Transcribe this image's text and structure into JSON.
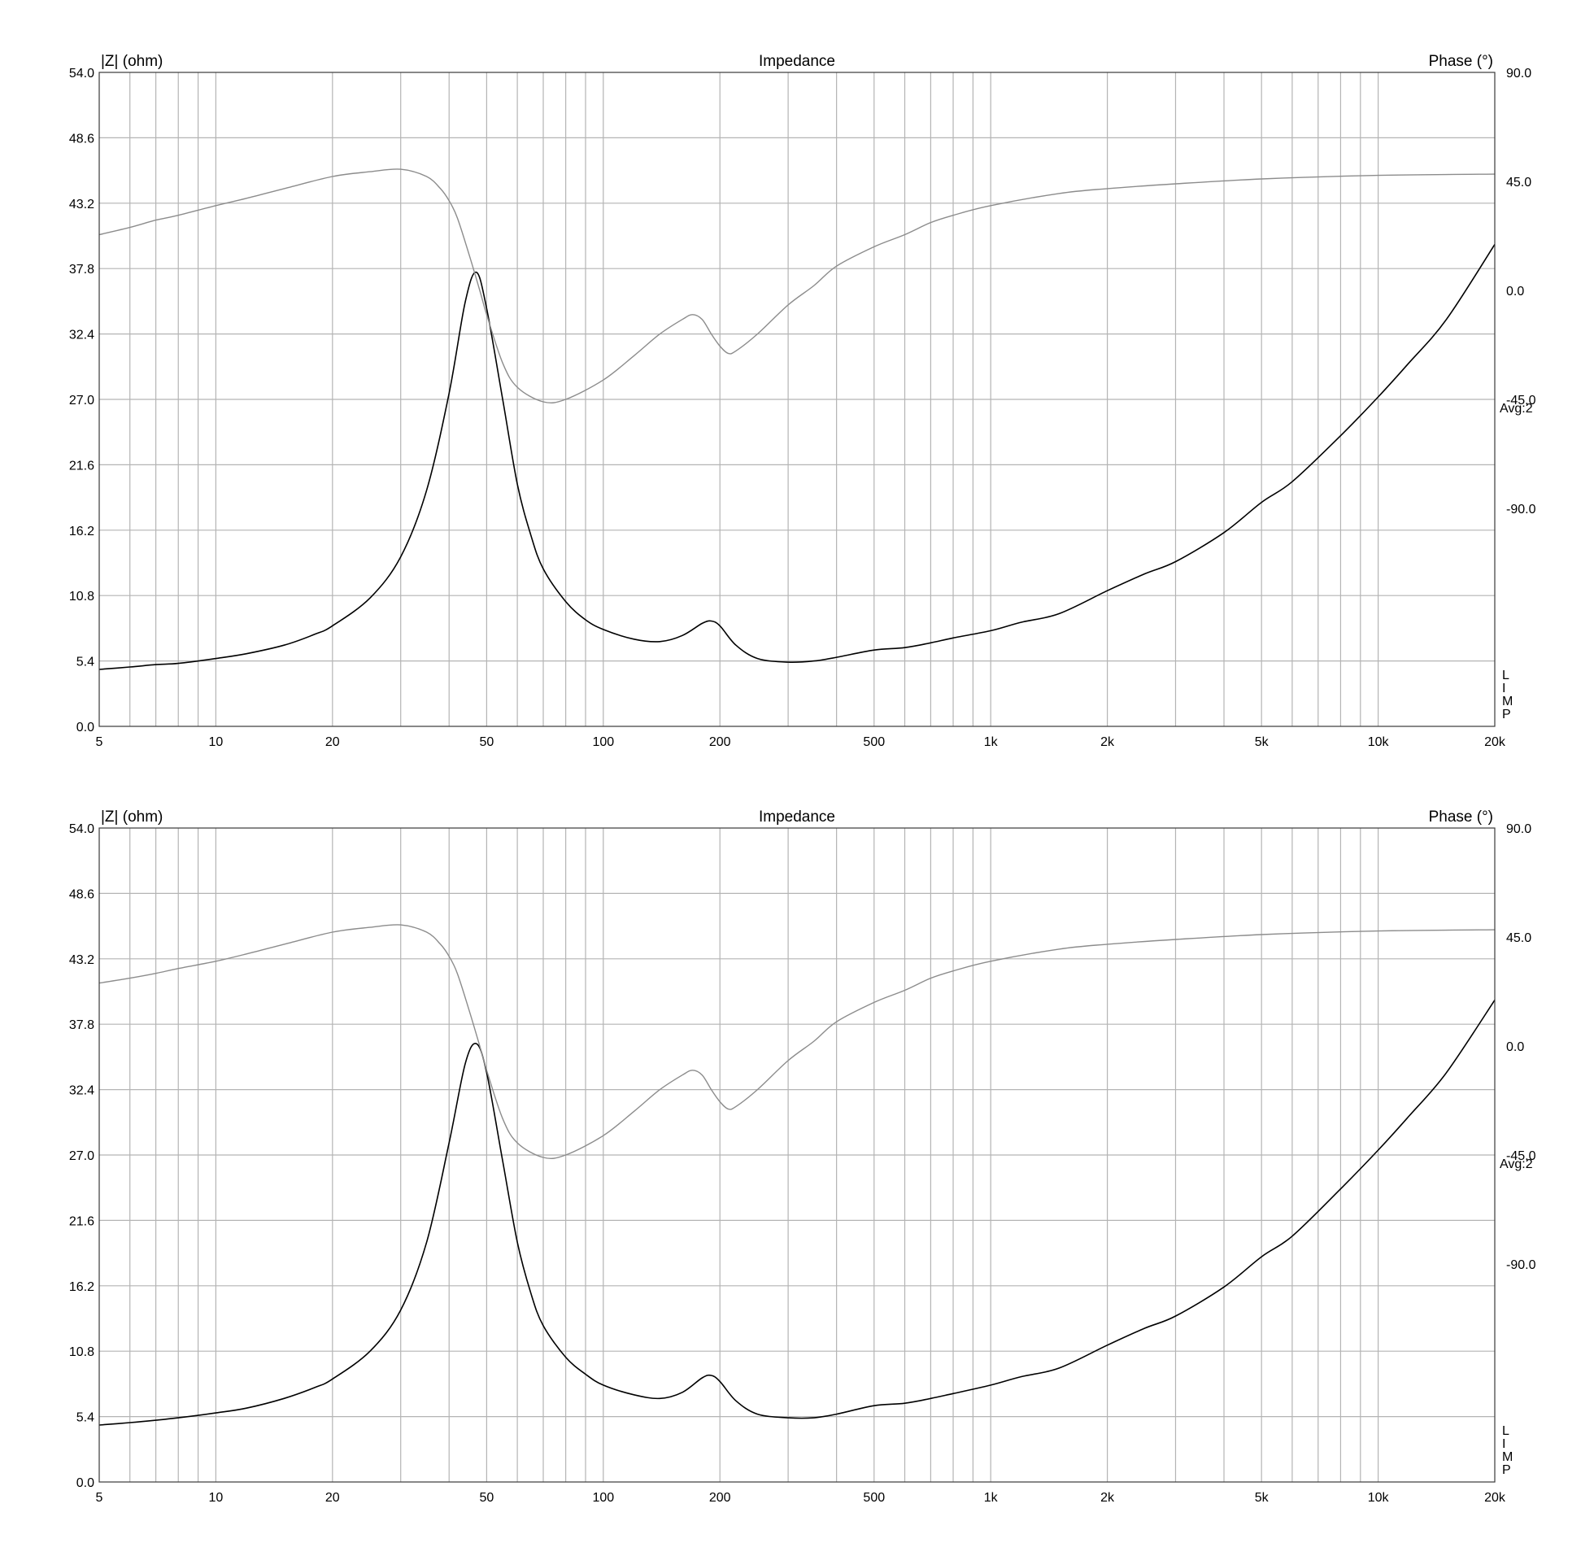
{
  "chart_data": [
    {
      "type": "line",
      "title": "Impedance",
      "ylabel": "|Z| (ohm)",
      "y2label": "Phase (°)",
      "xscale": "log",
      "xlim": [
        5,
        20000
      ],
      "ylim": [
        0,
        54
      ],
      "y2lim": [
        -180,
        90
      ],
      "grid": true,
      "x_ticks": [
        "5",
        "10",
        "20",
        "50",
        "100",
        "200",
        "500",
        "1k",
        "2k",
        "5k",
        "10k",
        "20k"
      ],
      "y_ticks": [
        "0.0",
        "5.4",
        "10.8",
        "16.2",
        "21.6",
        "27.0",
        "32.4",
        "37.8",
        "43.2",
        "48.6",
        "54.0"
      ],
      "y2_ticks": [
        "90.0",
        "45.0",
        "0.0",
        "-45.0",
        "-90.0"
      ],
      "side_note": "Avg:2",
      "limp_label": [
        "L",
        "I",
        "M",
        "P"
      ],
      "colors": {
        "impedance": "#000000",
        "phase": "#8c8c8c",
        "grid": "#b4b4b4"
      },
      "series": [
        {
          "name": "",
          "axis": "left",
          "x": [
            5,
            6,
            7,
            8,
            10,
            12,
            15,
            18,
            20,
            25,
            30,
            35,
            40,
            44,
            47,
            50,
            55,
            60,
            65,
            70,
            80,
            90,
            100,
            120,
            140,
            160,
            180,
            190,
            200,
            220,
            250,
            300,
            350,
            400,
            500,
            600,
            700,
            800,
            1000,
            1200,
            1500,
            2000,
            2500,
            3000,
            4000,
            5000,
            6000,
            8000,
            10000,
            12000,
            15000,
            20000
          ],
          "values": [
            4.7,
            4.9,
            5.1,
            5.2,
            5.6,
            6.0,
            6.7,
            7.6,
            8.3,
            10.6,
            14.0,
            19.5,
            27.5,
            35.0,
            37.5,
            34.5,
            27.0,
            20.0,
            15.8,
            13.0,
            10.3,
            8.8,
            8.0,
            7.2,
            7.0,
            7.5,
            8.5,
            8.7,
            8.3,
            6.7,
            5.6,
            5.3,
            5.4,
            5.7,
            6.3,
            6.5,
            6.9,
            7.3,
            7.9,
            8.6,
            9.3,
            11.2,
            12.6,
            13.6,
            16.0,
            18.5,
            20.2,
            24.0,
            27.2,
            30.0,
            33.6,
            39.8
          ]
        },
        {
          "name": "",
          "axis": "right",
          "x": [
            5,
            6,
            7,
            8,
            10,
            12,
            15,
            20,
            25,
            30,
            35,
            38,
            40,
            42,
            45,
            48,
            50,
            55,
            60,
            70,
            80,
            100,
            120,
            140,
            160,
            170,
            180,
            190,
            200,
            210,
            220,
            250,
            300,
            350,
            400,
            500,
            600,
            700,
            800,
            1000,
            1500,
            2000,
            3000,
            5000,
            10000,
            20000
          ],
          "values": [
            23,
            26,
            29,
            31,
            35,
            38,
            42,
            47,
            49,
            50,
            47,
            42,
            37,
            30,
            15,
            0,
            -10,
            -30,
            -40,
            -46,
            -45,
            -37,
            -27,
            -18,
            -12,
            -10,
            -12,
            -18,
            -23,
            -26,
            -25,
            -18,
            -6,
            2,
            10,
            18,
            23,
            28,
            31,
            35,
            40,
            42,
            44,
            46,
            47.5,
            48
          ]
        }
      ]
    },
    {
      "type": "line",
      "title": "Impedance",
      "ylabel": "|Z| (ohm)",
      "y2label": "Phase (°)",
      "xscale": "log",
      "xlim": [
        5,
        20000
      ],
      "ylim": [
        0,
        54
      ],
      "y2lim": [
        -180,
        90
      ],
      "grid": true,
      "x_ticks": [
        "5",
        "10",
        "20",
        "50",
        "100",
        "200",
        "500",
        "1k",
        "2k",
        "5k",
        "10k",
        "20k"
      ],
      "y_ticks": [
        "0.0",
        "5.4",
        "10.8",
        "16.2",
        "21.6",
        "27.0",
        "32.4",
        "37.8",
        "43.2",
        "48.6",
        "54.0"
      ],
      "y2_ticks": [
        "90.0",
        "45.0",
        "0.0",
        "-45.0",
        "-90.0"
      ],
      "side_note": "Avg:2",
      "limp_label": [
        "L",
        "I",
        "M",
        "P"
      ],
      "colors": {
        "impedance": "#000000",
        "phase": "#8c8c8c",
        "grid": "#b4b4b4"
      },
      "series": [
        {
          "name": "",
          "axis": "left",
          "x": [
            5,
            6,
            7,
            8,
            10,
            12,
            15,
            18,
            20,
            25,
            30,
            35,
            40,
            44,
            47,
            50,
            55,
            60,
            65,
            70,
            80,
            90,
            100,
            120,
            140,
            160,
            180,
            190,
            200,
            220,
            250,
            300,
            350,
            400,
            500,
            600,
            700,
            800,
            1000,
            1200,
            1500,
            2000,
            2500,
            3000,
            4000,
            5000,
            6000,
            8000,
            10000,
            12000,
            15000,
            20000
          ],
          "values": [
            4.7,
            4.9,
            5.1,
            5.3,
            5.7,
            6.1,
            6.9,
            7.8,
            8.5,
            10.8,
            14.2,
            19.8,
            28.0,
            34.5,
            36.2,
            33.8,
            26.5,
            19.8,
            15.6,
            12.9,
            10.3,
            8.9,
            8.0,
            7.2,
            6.9,
            7.4,
            8.6,
            8.8,
            8.3,
            6.7,
            5.6,
            5.3,
            5.3,
            5.6,
            6.3,
            6.5,
            6.9,
            7.3,
            8.0,
            8.7,
            9.4,
            11.3,
            12.7,
            13.7,
            16.1,
            18.6,
            20.3,
            24.2,
            27.4,
            30.2,
            33.8,
            39.8
          ]
        },
        {
          "name": "",
          "axis": "right",
          "x": [
            5,
            6,
            7,
            8,
            10,
            12,
            15,
            20,
            25,
            30,
            35,
            38,
            40,
            42,
            45,
            48,
            50,
            55,
            60,
            70,
            80,
            100,
            120,
            140,
            160,
            170,
            180,
            190,
            200,
            210,
            220,
            250,
            300,
            350,
            400,
            500,
            600,
            700,
            800,
            1000,
            1500,
            2000,
            3000,
            5000,
            10000,
            20000
          ],
          "values": [
            26,
            28,
            30,
            32,
            35,
            38,
            42,
            47,
            49,
            50,
            47,
            42,
            37,
            30,
            15,
            0,
            -10,
            -30,
            -40,
            -46,
            -45,
            -37,
            -27,
            -18,
            -12,
            -10,
            -12,
            -18,
            -23,
            -26,
            -25,
            -18,
            -6,
            2,
            10,
            18,
            23,
            28,
            31,
            35,
            40,
            42,
            44,
            46,
            47.5,
            48
          ]
        }
      ]
    }
  ]
}
